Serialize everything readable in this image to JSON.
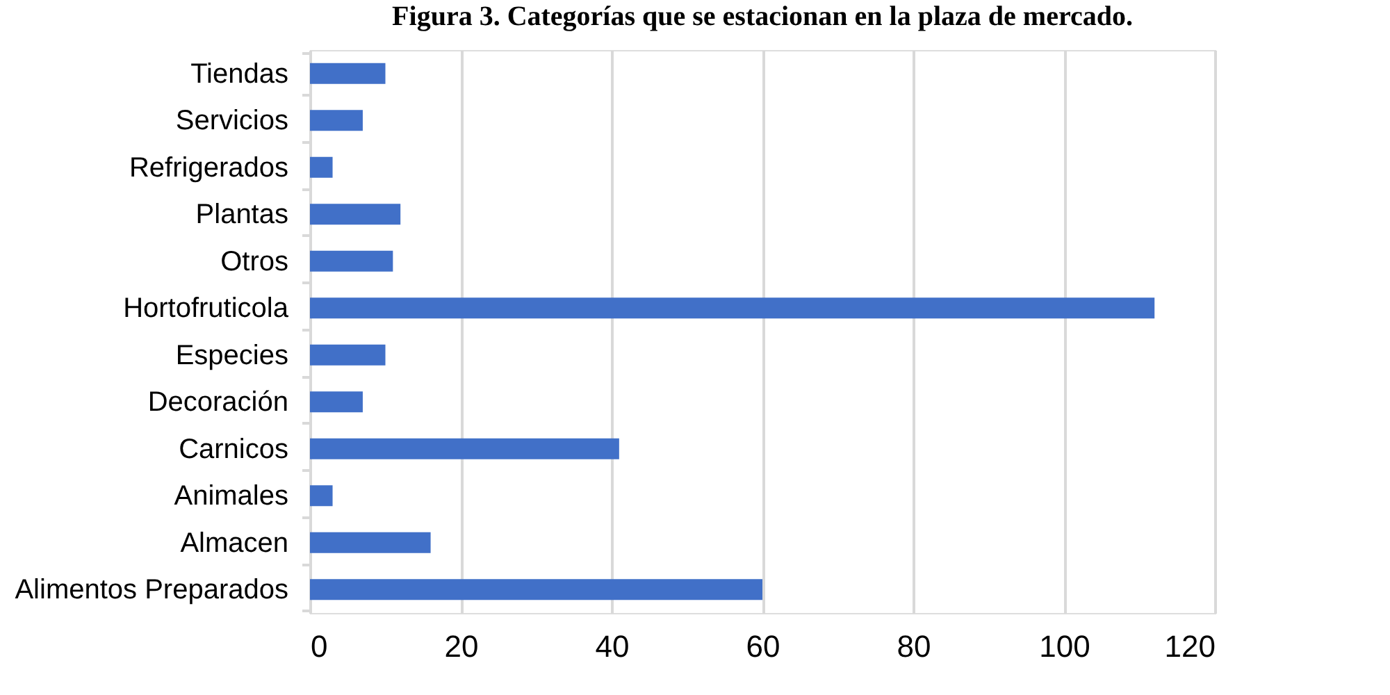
{
  "chart_data": {
    "type": "bar",
    "orientation": "horizontal",
    "title": "Figura 3. Categorías que se estacionan en la plaza de mercado.",
    "categories": [
      "Tiendas",
      "Servicios",
      "Refrigerados",
      "Plantas",
      "Otros",
      "Hortofruticola",
      "Especies",
      "Decoración",
      "Carnicos",
      "Animales",
      "Almacen",
      "Alimentos Preparados"
    ],
    "values": [
      10,
      7,
      3,
      12,
      11,
      112,
      10,
      7,
      41,
      3,
      16,
      60
    ],
    "color": "#4170c8",
    "xlim": [
      0,
      120
    ],
    "xticks": [
      0,
      20,
      40,
      60,
      80,
      100,
      120
    ],
    "grid": "x"
  }
}
